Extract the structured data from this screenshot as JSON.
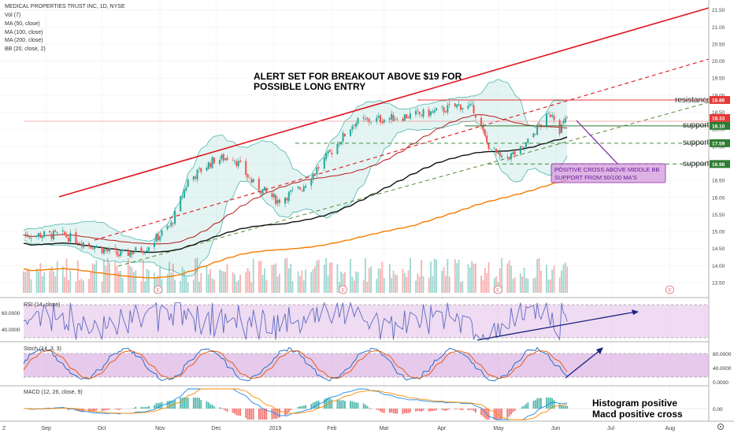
{
  "header": {
    "title": "MEDICAL PROPERTIES TRUST INC, 1D, NYSE",
    "indicators": [
      "Vol (7)",
      "MA (50, close)",
      "MA (100, close)",
      "MA (200, close)",
      "BB (20, close, 2)"
    ]
  },
  "annotations": {
    "alert_line1": "ALERT SET FOR BREAKOUT ABOVE $19 FOR",
    "alert_line2": "POSSIBLE LONG ENTRY",
    "resistance": "resistance",
    "support": "support",
    "callout_line1": "POSITIVE CROSS ABOVE MIDDLE BB",
    "callout_line2": "SUPPORT FROM 50/100 MA'S",
    "hist_note": "Histogram positive",
    "macd_note": "Macd positive cross"
  },
  "price_levels": {
    "resistance": "18.86",
    "current": "18.33",
    "support1": "18.10",
    "support2": "17.59",
    "support3": "16.98"
  },
  "panels": {
    "rsi": {
      "label": "RSI (14, close)",
      "ticks": [
        "60.0000",
        "40.0000"
      ]
    },
    "stoch": {
      "label": "Stoch (14, 3, 3)",
      "ticks": [
        "80.0000",
        "40.0000",
        "0.0000"
      ]
    },
    "macd": {
      "label": "MACD (12, 26, close, 9)",
      "ticks": [
        "0.00"
      ]
    }
  },
  "colors": {
    "bull": "#26a69a",
    "bear": "#ef5350",
    "trend": "#e0141e",
    "ma50": "#b71c1c",
    "ma100": "#111111",
    "ma200": "#f57c00",
    "bb": "#4db6ac",
    "support": "#2e7d32",
    "arrow": "#1a237e",
    "callout": "#ce93d8"
  },
  "chart_data": {
    "type": "candlestick",
    "price_axis": [
      "21.50",
      "21.00",
      "20.50",
      "20.00",
      "19.50",
      "19.00",
      "18.50",
      "18.00",
      "17.50",
      "17.00",
      "16.50",
      "16.00",
      "15.50",
      "15.00",
      "14.50",
      "14.00",
      "13.50"
    ],
    "ylim": [
      13.2,
      21.7
    ],
    "time_axis": [
      "Sep",
      "Oct",
      "Nov",
      "Dec",
      "2019",
      "Feb",
      "Mar",
      "Apr",
      "May",
      "Jun",
      "Jul",
      "Aug"
    ],
    "x_start": "2018-08-20",
    "x_end": "2019-08-21",
    "earnings_markers": [
      "2018-10-31",
      "2019-02-07",
      "2019-05-01",
      "2019-08-01"
    ],
    "price_waypoints": [
      [
        "2018-08-20",
        14.9
      ],
      [
        "2018-09-10",
        14.9
      ],
      [
        "2018-09-25",
        14.6
      ],
      [
        "2018-10-10",
        14.3
      ],
      [
        "2018-10-24",
        14.5
      ],
      [
        "2018-11-07",
        15.2
      ],
      [
        "2018-11-16",
        16.5
      ],
      [
        "2018-11-30",
        17.1
      ],
      [
        "2018-12-10",
        17.2
      ],
      [
        "2018-12-21",
        16.4
      ],
      [
        "2019-01-03",
        15.9
      ],
      [
        "2019-01-16",
        16.3
      ],
      [
        "2019-01-31",
        17.3
      ],
      [
        "2019-02-13",
        18.2
      ],
      [
        "2019-02-28",
        18.3
      ],
      [
        "2019-03-15",
        18.4
      ],
      [
        "2019-03-28",
        18.5
      ],
      [
        "2019-04-10",
        18.7
      ],
      [
        "2019-04-18",
        18.6
      ],
      [
        "2019-04-25",
        17.6
      ],
      [
        "2019-05-03",
        17.1
      ],
      [
        "2019-05-14",
        17.4
      ],
      [
        "2019-05-23",
        18.1
      ],
      [
        "2019-05-30",
        18.5
      ],
      [
        "2019-06-03",
        18.0
      ],
      [
        "2019-06-07",
        18.33
      ]
    ],
    "levels": [
      18.86,
      18.33,
      18.1,
      17.59,
      16.98
    ]
  }
}
